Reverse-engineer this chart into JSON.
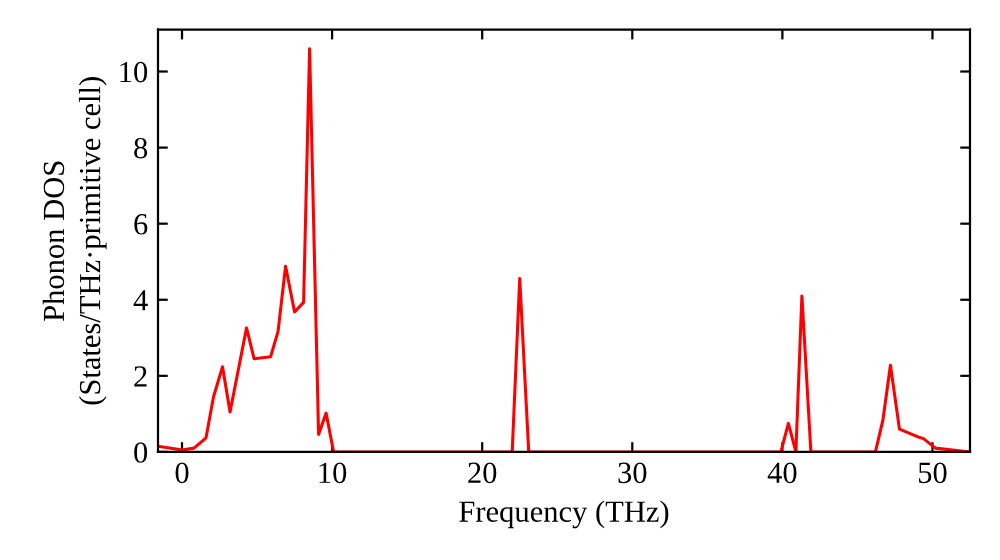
{
  "chart_data": {
    "type": "line",
    "xlabel": "Frequency (THz)",
    "ylabel": "Phonon DOS\n(States/THz·primitive cell)",
    "x": [
      -1.6,
      0,
      0.8,
      1.6,
      2.1,
      2.7,
      3.2,
      4.3,
      4.8,
      5.9,
      6.4,
      6.9,
      7.5,
      8.1,
      8.5,
      9.1,
      9.6,
      10.1,
      22.0,
      22.5,
      23.1,
      39.9,
      40.4,
      40.9,
      41.3,
      41.9,
      46.2,
      46.7,
      47.2,
      47.8,
      49.0,
      49.4,
      50.2,
      52.5
    ],
    "series": [
      {
        "color": "#ff0000",
        "values": [
          0.15,
          0.05,
          0.1,
          0.37,
          1.45,
          2.24,
          1.05,
          3.26,
          2.45,
          2.5,
          3.17,
          4.88,
          3.68,
          3.93,
          10.6,
          0.46,
          1.02,
          0,
          0,
          4.56,
          0,
          0,
          0.75,
          0,
          4.1,
          0,
          0,
          0.84,
          2.28,
          0.6,
          0.4,
          0.35,
          0.1,
          0
        ]
      }
    ],
    "xlim": [
      -1.6,
      52.5
    ],
    "ylim": [
      0,
      11.1
    ],
    "xticks": [
      0,
      10,
      20,
      30,
      40,
      50
    ],
    "yticks": [
      0,
      2,
      4,
      6,
      8,
      10
    ],
    "grid": false,
    "legend": false,
    "line_style": "solid",
    "marker": "none"
  }
}
